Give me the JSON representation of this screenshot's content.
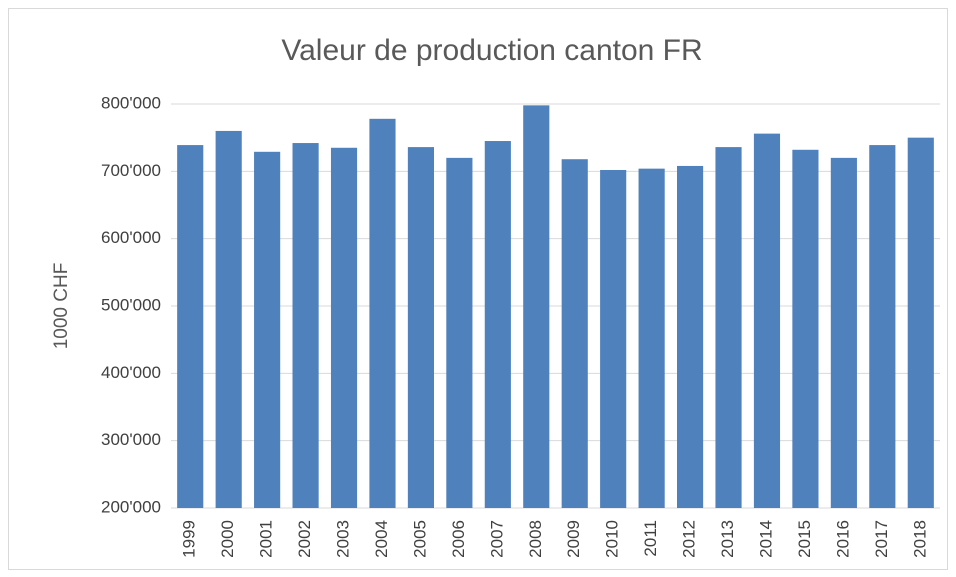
{
  "chart_data": {
    "type": "bar",
    "title": "Valeur de production canton FR",
    "y_label": "1000 CHF",
    "categories": [
      "1999",
      "2000",
      "2001",
      "2002",
      "2003",
      "2004",
      "2005",
      "2006",
      "2007",
      "2008",
      "2009",
      "2010",
      "2011",
      "2012",
      "2013",
      "2014",
      "2015",
      "2016",
      "2017",
      "2018"
    ],
    "values": [
      739000,
      760000,
      729000,
      742000,
      735000,
      778000,
      736000,
      720000,
      745000,
      798000,
      718000,
      702000,
      704000,
      708000,
      736000,
      756000,
      732000,
      720000,
      739000,
      750000
    ],
    "color": "#4f81bd",
    "ylim": [
      200000,
      800000
    ],
    "yticks": [
      {
        "value": 200000,
        "label": "200'000"
      },
      {
        "value": 300000,
        "label": "300'000"
      },
      {
        "value": 400000,
        "label": "400'000"
      },
      {
        "value": 500000,
        "label": "500'000"
      },
      {
        "value": 600000,
        "label": "600'000"
      },
      {
        "value": 700000,
        "label": "700'000"
      },
      {
        "value": 800000,
        "label": "800'000"
      }
    ],
    "grid": true
  }
}
